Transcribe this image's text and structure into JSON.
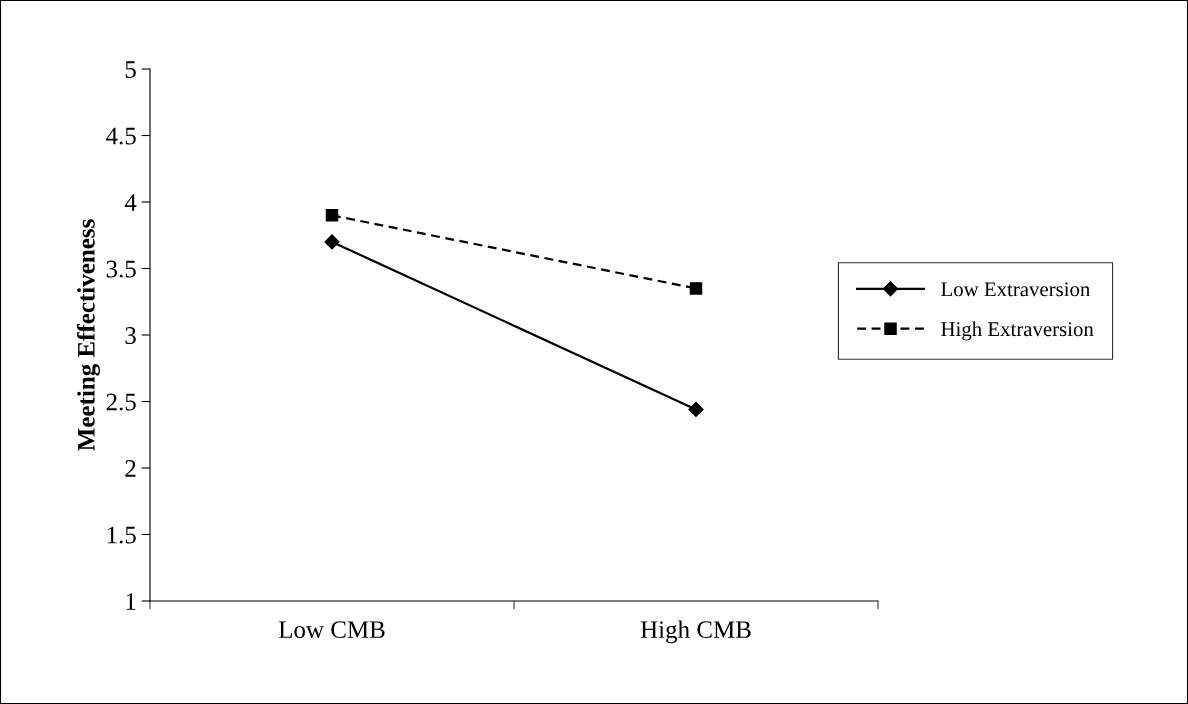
{
  "chart_data": {
    "type": "line",
    "ylabel": "Meeting Effectiveness",
    "categories": [
      "Low CMB",
      "High CMB"
    ],
    "series": [
      {
        "name": "Low Extraversion",
        "color": "#000000",
        "values": [
          3.7,
          2.44
        ],
        "marker": "diamond",
        "line_style": "solid"
      },
      {
        "name": "High Extraversion",
        "color": "#000000",
        "values": [
          3.9,
          3.35
        ],
        "marker": "square",
        "line_style": "dashed"
      }
    ],
    "ylim": [
      1,
      5
    ],
    "yticks": [
      1,
      1.5,
      2,
      2.5,
      3,
      3.5,
      4,
      4.5,
      5
    ],
    "grid": false,
    "legend": "right"
  }
}
